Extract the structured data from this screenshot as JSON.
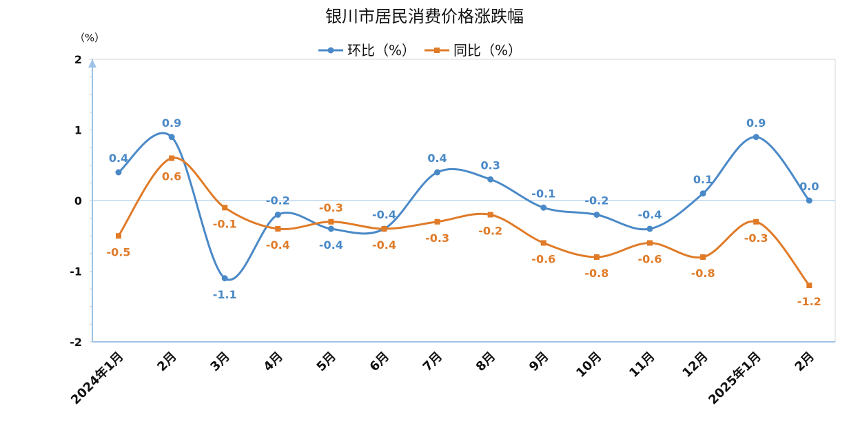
{
  "chart_data": {
    "type": "line",
    "title": "银川市居民消费价格涨跌幅",
    "ylabel": "（%）",
    "ylim": [
      -2,
      2
    ],
    "yticks": [
      "2",
      "1",
      "0",
      "-1",
      "-2"
    ],
    "categories": [
      "2024年1月",
      "2月",
      "3月",
      "4月",
      "5月",
      "6月",
      "7月",
      "8月",
      "9月",
      "10月",
      "11月",
      "12月",
      "2025年1月",
      "2月"
    ],
    "series": [
      {
        "name": "环比（%）",
        "color": "#4a89c7",
        "marker": "circle",
        "values": [
          0.4,
          0.9,
          -1.1,
          -0.2,
          -0.4,
          -0.4,
          0.4,
          0.3,
          -0.1,
          -0.2,
          -0.4,
          0.1,
          0.9,
          0.0
        ],
        "labels": [
          "0.4",
          "0.9",
          "-1.1",
          "-0.2",
          "-0.4",
          "-0.4",
          "0.4",
          "0.3",
          "-0.1",
          "-0.2",
          "-0.4",
          "0.1",
          "0.9",
          "0.0"
        ]
      },
      {
        "name": "同比（%）",
        "color": "#e07b28",
        "marker": "square",
        "values": [
          -0.5,
          0.6,
          -0.1,
          -0.4,
          -0.3,
          -0.4,
          -0.3,
          -0.2,
          -0.6,
          -0.8,
          -0.6,
          -0.8,
          -0.3,
          -1.2
        ],
        "labels": [
          "-0.5",
          "0.6",
          "-0.1",
          "-0.4",
          "-0.3",
          "-0.4",
          "-0.3",
          "-0.2",
          "-0.6",
          "-0.8",
          "-0.6",
          "-0.8",
          "-0.3",
          "-1.2"
        ]
      }
    ],
    "legend": "top-center",
    "grid": false
  }
}
